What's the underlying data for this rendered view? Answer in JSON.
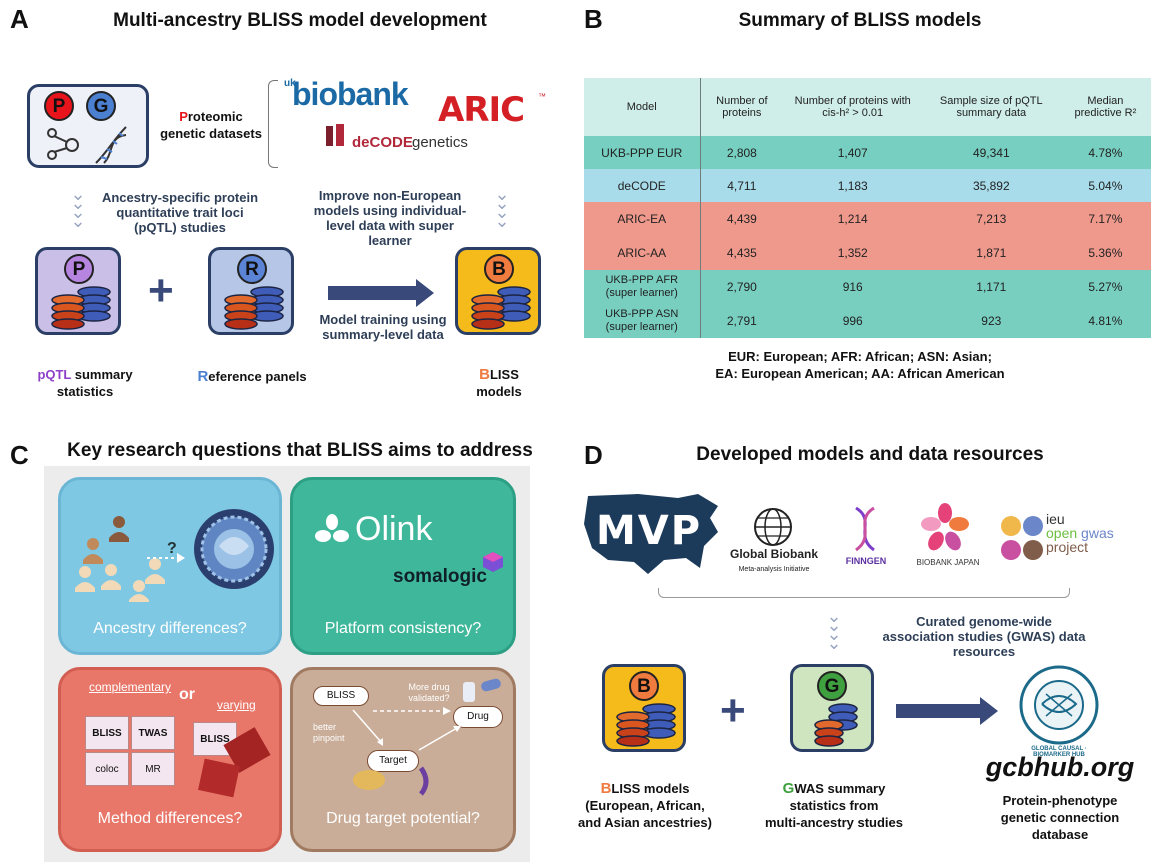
{
  "panelA": {
    "letter": "A",
    "title": "Multi-ancestry BLISS model development",
    "p_letter": "P",
    "g_letter": "G",
    "proteomic_first": "P",
    "proteomic_rest": "roteomic",
    "proteomic_line2": "genetic datasets",
    "logo_uk": "uk",
    "logo_biobank": "biobank",
    "logo_aric": "ARIC",
    "logo_aric_tm": "™",
    "logo_decode_bold": "deCODE",
    "logo_decode_rest": " genetics",
    "caption_left_1": "Ancestry-specific protein",
    "caption_left_2": "quantitative trait loci",
    "caption_left_3": "(pQTL) studies",
    "caption_right_1": "Improve non-European",
    "caption_right_2": "models using individual-",
    "caption_right_3": "level data with super",
    "caption_right_4": "learner",
    "tile_p": "P",
    "tile_r": "R",
    "tile_b": "B",
    "plus": "+",
    "arrow_caption_1": "Model training using",
    "arrow_caption_2": "summary-level data",
    "label_pqtl_first": "pQTL",
    "label_pqtl_rest": " summary",
    "label_pqtl_line2": "statistics",
    "label_ref_first": "R",
    "label_ref_rest": "eference panels",
    "label_bliss_first": "B",
    "label_bliss_rest": "LISS",
    "label_bliss_line2": "models"
  },
  "panelB": {
    "letter": "B",
    "title": "Summary of BLISS models",
    "headers": [
      "Model",
      "Number of proteins",
      "Number of proteins with cis-h² > 0.01",
      "Sample size of pQTL summary data",
      "Median predictive R²"
    ],
    "rows": [
      {
        "model": "UKB-PPP EUR",
        "proteins": "2,808",
        "cis": "1,407",
        "sample": "49,341",
        "r2": "4.78%"
      },
      {
        "model": "deCODE",
        "proteins": "4,711",
        "cis": "1,183",
        "sample": "35,892",
        "r2": "5.04%"
      },
      {
        "model": "ARIC-EA",
        "proteins": "4,439",
        "cis": "1,214",
        "sample": "7,213",
        "r2": "7.17%"
      },
      {
        "model": "ARIC-AA",
        "proteins": "4,435",
        "cis": "1,352",
        "sample": "1,871",
        "r2": "5.36%"
      },
      {
        "model": "UKB-PPP AFR\n(super learner)",
        "proteins": "2,790",
        "cis": "916",
        "sample": "1,171",
        "r2": "5.27%"
      },
      {
        "model": "UKB-PPP ASN\n(super learner)",
        "proteins": "2,791",
        "cis": "996",
        "sample": "923",
        "r2": "4.81%"
      }
    ],
    "footnote_1": "EUR: European; AFR: African; ASN: Asian;",
    "footnote_2": "EA: European American; AA: African American"
  },
  "panelC": {
    "letter": "C",
    "title": "Key research questions that BLISS aims to address",
    "q1": "Ancestry differences?",
    "q2": "Platform consistency?",
    "q3": "Method differences?",
    "q4": "Drug target potential?",
    "question_mark": "?",
    "olink": "Olink",
    "somalogic": "somalogic",
    "complementary": "complementary",
    "or": "or",
    "varying": "varying",
    "piece_bliss": "BLISS",
    "piece_twas": "TWAS",
    "piece_coloc": "coloc",
    "piece_mr": "MR",
    "piece_bliss2": "BLISS",
    "drug_bliss": "BLISS",
    "drug_more_1": "More drug",
    "drug_more_2": "validated?",
    "drug_drug": "Drug",
    "drug_better_1": "better",
    "drug_better_2": "pinpoint",
    "drug_target": "Target"
  },
  "panelD": {
    "letter": "D",
    "title": "Developed models and data resources",
    "mvp": "MVP",
    "gb_1": "Global Biobank",
    "gb_2": "Meta-analysis Initiative",
    "finngen": "FINNGEN",
    "bbj": "BIOBANK JAPAN",
    "ieu": "ieu",
    "open": "open",
    "gwas": "gwas",
    "project": "project",
    "curated_1": "Curated genome-wide",
    "curated_2": "association studies (GWAS) data",
    "curated_3": "resources",
    "tile_b": "B",
    "tile_g": "G",
    "plus": "+",
    "hub_ring": "GLOBAL CAUSAL · BIOMARKER HUB",
    "site": "gcbhub.org",
    "label_b_first": "B",
    "label_b_rest": "LISS models",
    "label_b_2": "(European, African,",
    "label_b_3": "and Asian ancestries)",
    "label_g_first": "G",
    "label_g_rest": "WAS summary",
    "label_g_2": "statistics from",
    "label_g_3": "multi-ancestry studies",
    "label_hub_1": "Protein-phenotype",
    "label_hub_2": "genetic connection",
    "label_hub_3": "database"
  },
  "colors": {
    "tile_border": "#2b3f66",
    "lavender": "#cabfe6",
    "periwinkle": "#b5c6e6",
    "gold": "#f5bb1b",
    "pale_green": "#cfe5c0",
    "red_badge": "#e8141c",
    "blue_badge": "#4b7fd0",
    "purple_badge": "#b685e0",
    "orange_badge": "#f07b3f",
    "green_badge": "#3fa03f",
    "arrow": "#394a7a",
    "q_blue": "#7ec8e3",
    "q_teal": "#3fb79b",
    "q_red": "#e8776a",
    "q_tan": "#c9ad98"
  }
}
